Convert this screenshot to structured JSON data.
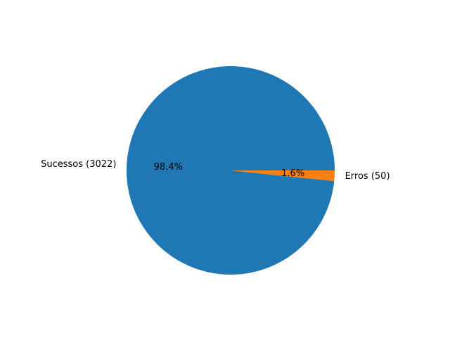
{
  "chart_data": {
    "type": "pie",
    "title": "",
    "slices": [
      {
        "label": "Sucessos (3022)",
        "value": 3022,
        "pct_label": "98.4%",
        "color": "#1f77b4"
      },
      {
        "label": "Erros (50)",
        "value": 50,
        "pct_label": "1.6%",
        "color": "#ff7f0e"
      }
    ],
    "start_angle_deg": 0,
    "direction": "counterclockwise"
  }
}
